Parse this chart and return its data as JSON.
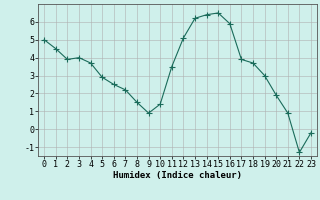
{
  "x": [
    0,
    1,
    2,
    3,
    4,
    5,
    6,
    7,
    8,
    9,
    10,
    11,
    12,
    13,
    14,
    15,
    16,
    17,
    18,
    19,
    20,
    21,
    22,
    23
  ],
  "y": [
    5.0,
    4.5,
    3.9,
    4.0,
    3.7,
    2.9,
    2.5,
    2.2,
    1.5,
    0.9,
    1.4,
    3.5,
    5.1,
    6.2,
    6.4,
    6.5,
    5.9,
    3.9,
    3.7,
    3.0,
    1.9,
    0.9,
    -1.3,
    -0.2
  ],
  "line_color": "#1a6b5a",
  "marker": "+",
  "marker_size": 4.0,
  "bg_color": "#cff0eb",
  "grid_color": "#b0b0b0",
  "xlabel": "Humidex (Indice chaleur)",
  "ylim": [
    -1.5,
    7.0
  ],
  "xlim": [
    -0.5,
    23.5
  ],
  "yticks": [
    -1,
    0,
    1,
    2,
    3,
    4,
    5,
    6
  ],
  "xticks": [
    0,
    1,
    2,
    3,
    4,
    5,
    6,
    7,
    8,
    9,
    10,
    11,
    12,
    13,
    14,
    15,
    16,
    17,
    18,
    19,
    20,
    21,
    22,
    23
  ],
  "xlabel_fontsize": 6.5,
  "tick_fontsize": 6.0,
  "line_width": 0.8
}
